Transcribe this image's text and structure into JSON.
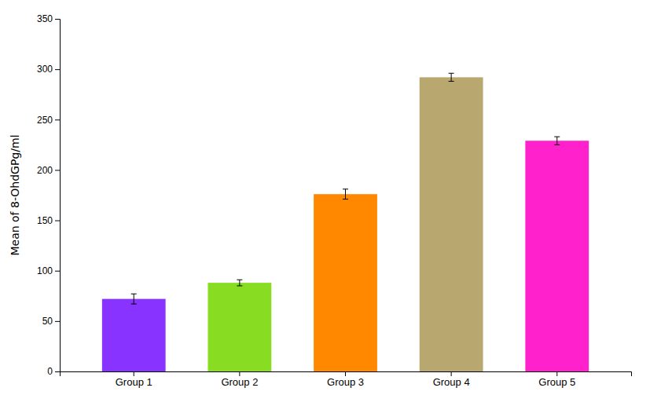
{
  "chart_data": {
    "type": "bar",
    "categories": [
      "Group 1",
      "Group 2",
      "Group 3",
      "Group 4",
      "Group 5"
    ],
    "values": [
      72,
      88,
      176,
      292,
      229
    ],
    "errors": [
      5,
      3,
      5,
      4,
      4
    ],
    "colors": [
      "#8833FF",
      "#88DD22",
      "#FF8800",
      "#B8A870",
      "#FF22CC"
    ],
    "ylabel": "Mean of 8-OhdGPg/ml",
    "ylim": [
      0,
      350
    ],
    "yticks": [
      0,
      50,
      100,
      150,
      200,
      250,
      300,
      350
    ],
    "grid": false
  }
}
